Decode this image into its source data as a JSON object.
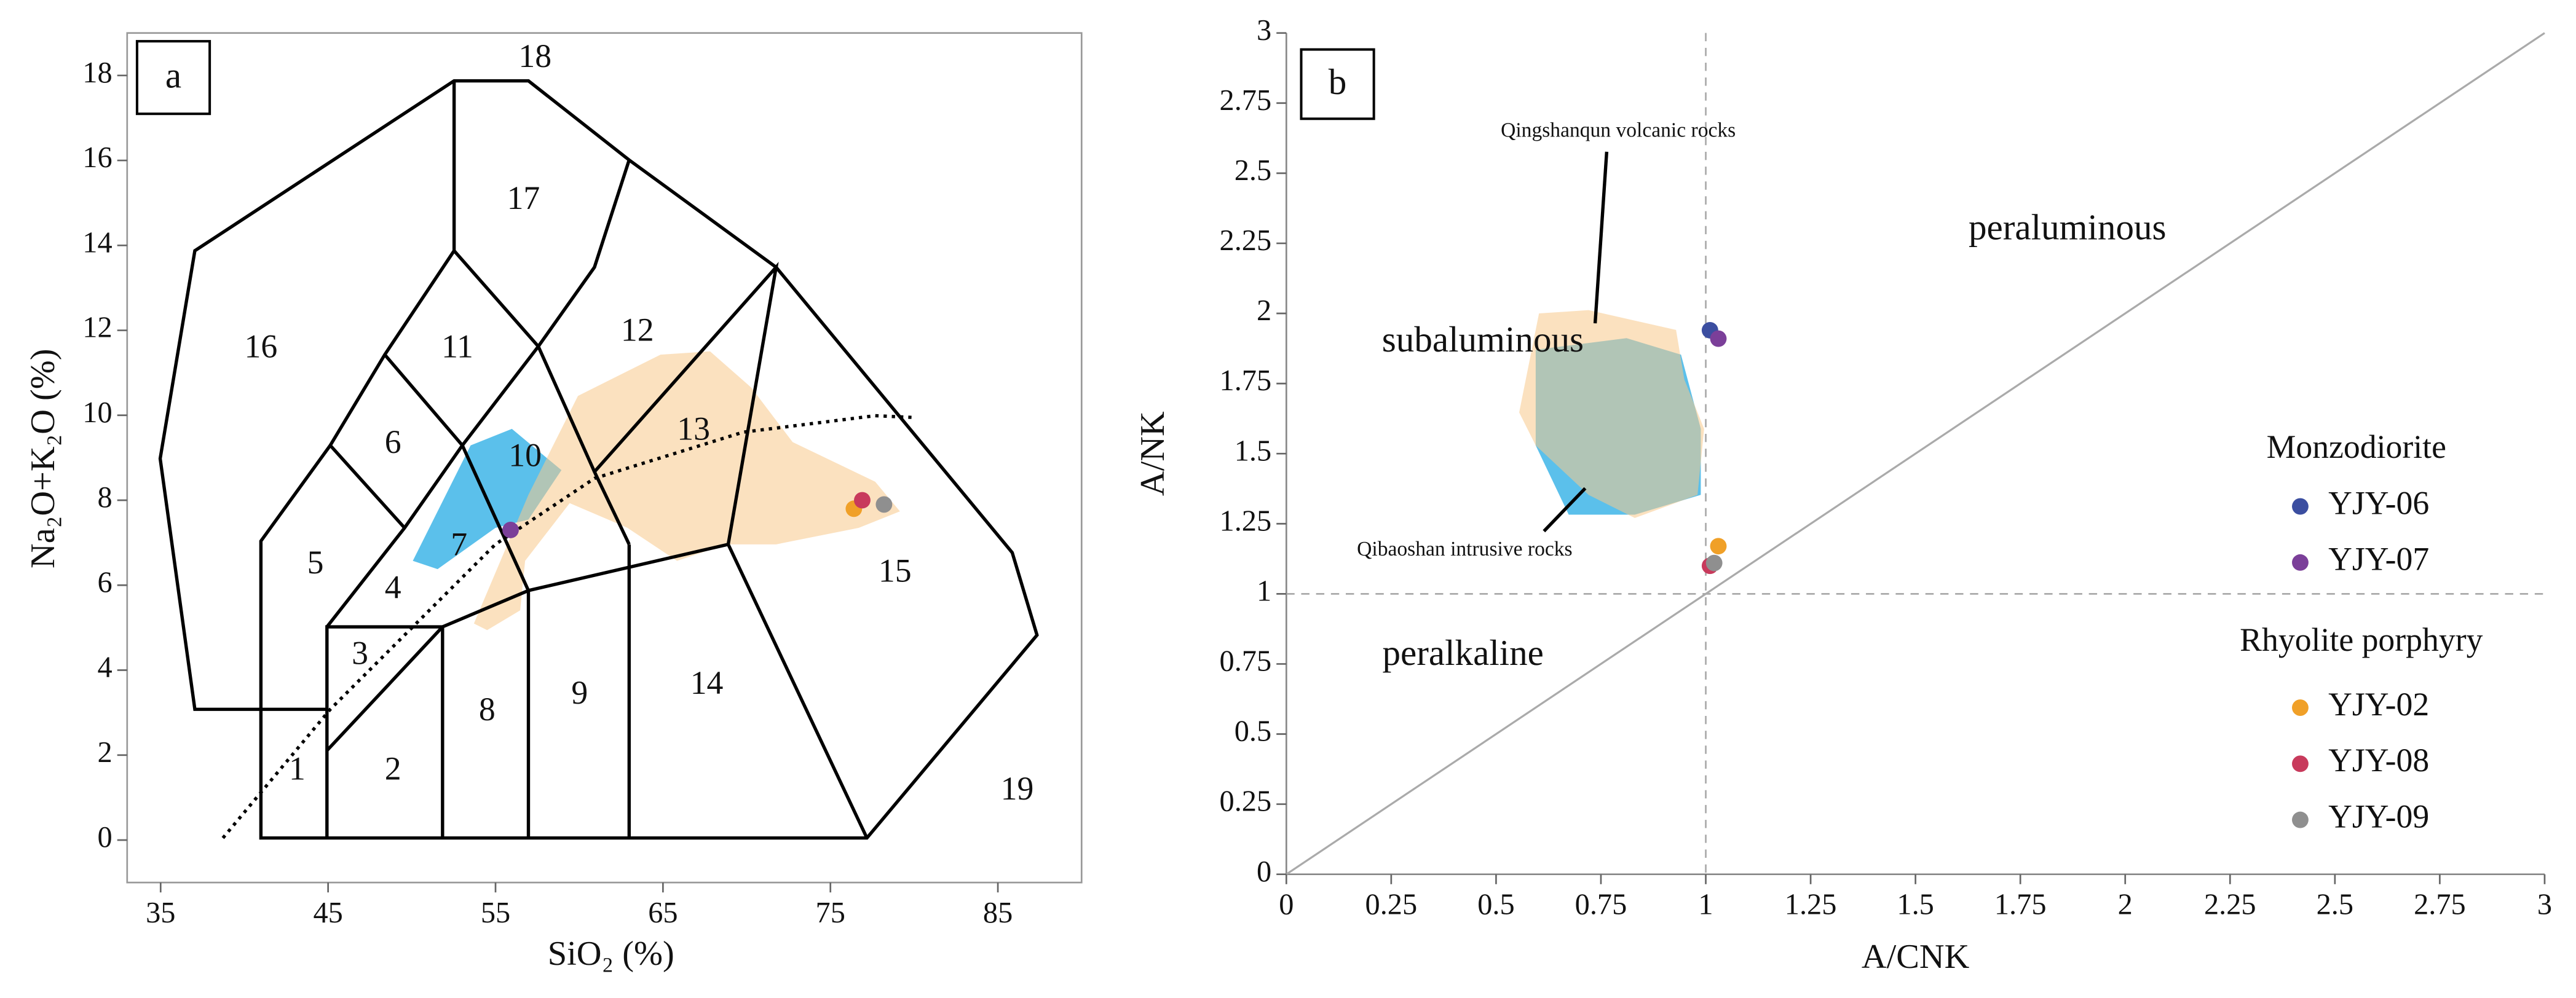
{
  "chart_data": [
    {
      "type": "scatter",
      "panel": "a",
      "x_label": "SiO₂ (%)",
      "y_label": "Na₂O+K₂O (%)",
      "xlim": [
        33,
        90
      ],
      "ylim": [
        -1,
        19
      ],
      "xticks": [
        35,
        45,
        55,
        65,
        75,
        85
      ],
      "yticks": [
        0,
        2,
        4,
        6,
        8,
        10,
        12,
        14,
        16,
        18
      ],
      "field_labels": [
        "1",
        "2",
        "3",
        "4",
        "5",
        "6",
        "7",
        "8",
        "9",
        "10",
        "11",
        "12",
        "13",
        "14",
        "15",
        "16",
        "17",
        "18",
        "19"
      ],
      "series": [
        {
          "color": "#7b3f99",
          "x": [
            55.9
          ],
          "values": [
            7.3
          ]
        },
        {
          "color": "#f0a028",
          "x": [
            76.4
          ],
          "values": [
            7.8
          ]
        },
        {
          "color": "#c83a5c",
          "x": [
            76.9
          ],
          "values": [
            8.0
          ]
        },
        {
          "color": "#8f8f8f",
          "x": [
            78.2
          ],
          "values": [
            7.9
          ]
        }
      ]
    },
    {
      "type": "scatter",
      "panel": "b",
      "x_label": "A/CNK",
      "y_label": "A/NK",
      "xlim": [
        0,
        3
      ],
      "ylim": [
        0,
        3
      ],
      "xticks": [
        0,
        0.25,
        0.5,
        0.75,
        1,
        1.25,
        1.5,
        1.75,
        2,
        2.25,
        2.5,
        2.75,
        3
      ],
      "yticks": [
        0,
        0.25,
        0.5,
        0.75,
        1,
        1.25,
        1.5,
        1.75,
        2,
        2.25,
        2.5,
        2.75,
        3
      ],
      "annotations": [
        "peraluminous",
        "subaluminous",
        "peralkaline",
        "Qingshanqun volcanic rocks",
        "Qibaoshan intrusive rocks"
      ],
      "legend_titles": [
        "Monzodiorite",
        "Rhyolite porphyry"
      ],
      "series": [
        {
          "name": "YJY-06",
          "color": "#3b4ea0",
          "x": [
            1.01
          ],
          "values": [
            1.94
          ]
        },
        {
          "name": "YJY-07",
          "color": "#7b3f99",
          "x": [
            1.03
          ],
          "values": [
            1.91
          ]
        },
        {
          "name": "YJY-02",
          "color": "#f0a028",
          "x": [
            1.03
          ],
          "values": [
            1.17
          ]
        },
        {
          "name": "YJY-08",
          "color": "#c83a5c",
          "x": [
            1.01
          ],
          "values": [
            1.1
          ]
        },
        {
          "name": "YJY-09",
          "color": "#8f8f8f",
          "x": [
            1.02
          ],
          "values": [
            1.11
          ]
        }
      ]
    }
  ]
}
